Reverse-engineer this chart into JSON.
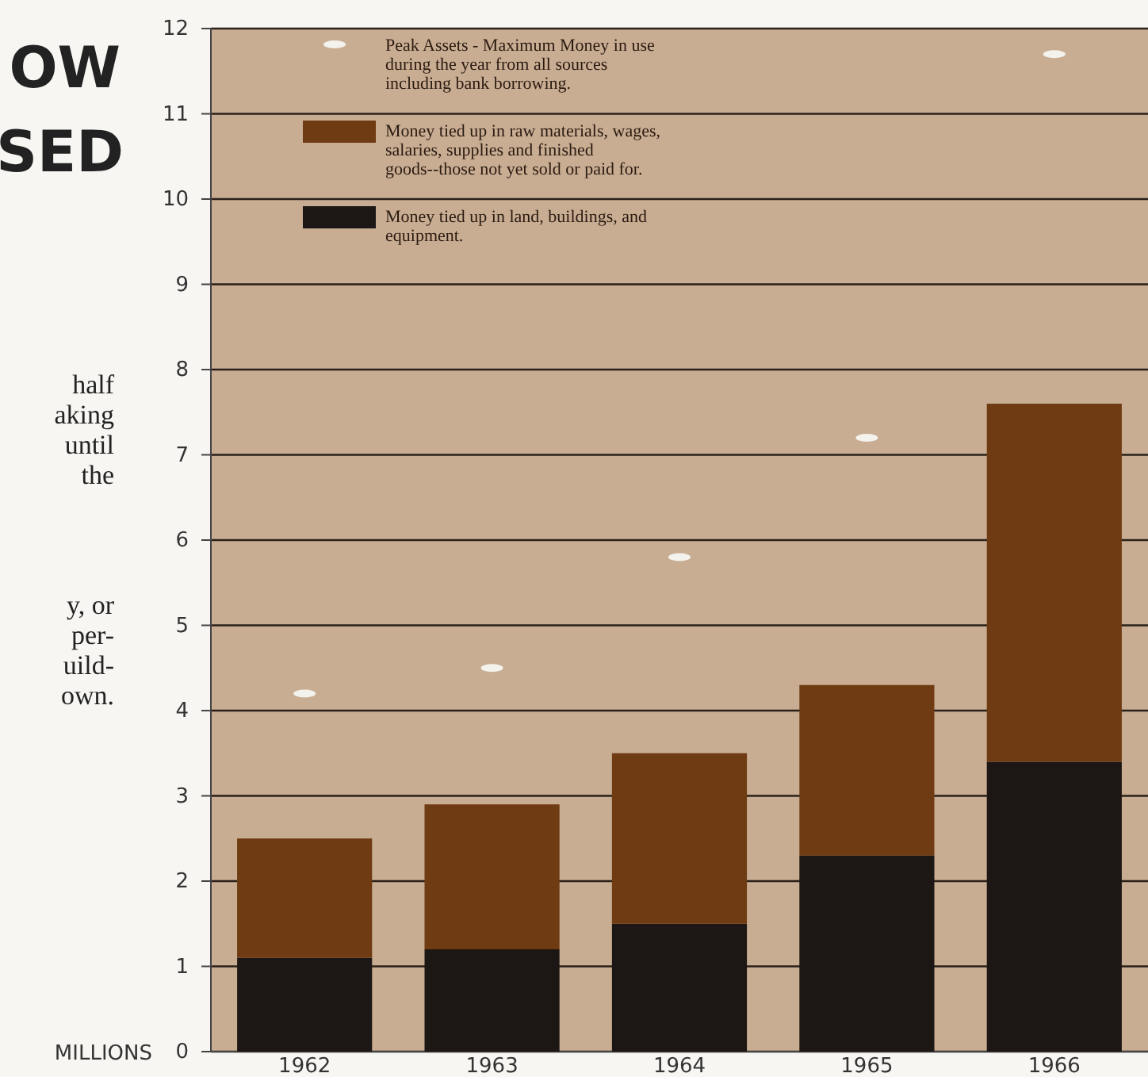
{
  "chart_data": {
    "type": "bar",
    "stacked": true,
    "ylabel": "MILLIONS",
    "categories": [
      "1962",
      "1963",
      "1964",
      "1965",
      "1966"
    ],
    "series": [
      {
        "name": "Money tied up in land, buildings, and equipment.",
        "color": "#1c1714",
        "values": [
          1.1,
          1.2,
          1.5,
          2.3,
          3.4
        ]
      },
      {
        "name": "Money tied up in raw materials, wages, salaries, supplies and finished goods--those not yet sold or paid for.",
        "color": "#6e3b12",
        "values": [
          1.4,
          1.7,
          2.0,
          2.0,
          4.2
        ]
      },
      {
        "name": "Peak Assets - Maximum Money in use during the year from all sources including bank borrowing.",
        "type": "scatter",
        "color": "#f4f2ec",
        "values": [
          4.2,
          4.5,
          5.8,
          7.2,
          11.7
        ]
      }
    ],
    "ylim": [
      0,
      12
    ],
    "yticks": [
      0,
      1,
      2,
      3,
      4,
      5,
      6,
      7,
      8,
      9,
      10,
      11,
      12
    ],
    "grid": "y",
    "legend": "top left",
    "annotations": [
      "OW",
      "SED",
      "half",
      "aking",
      "until",
      "the",
      "y, or",
      "per-",
      "uild-",
      "own."
    ]
  }
}
